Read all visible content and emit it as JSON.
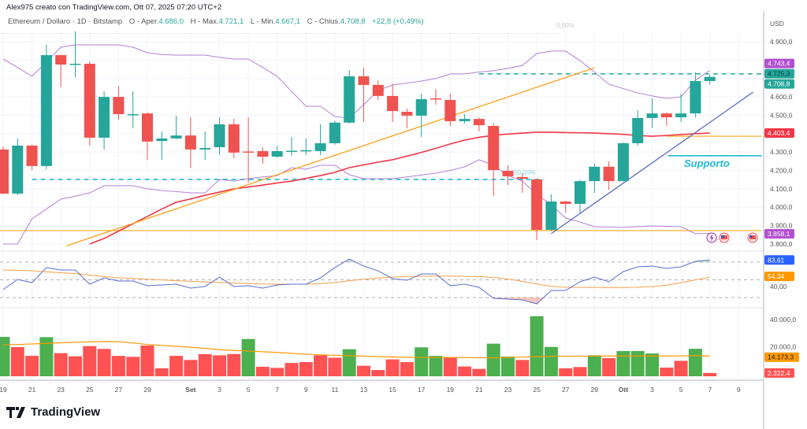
{
  "header": {
    "attribution": "Alex975 creato con TradingView.com, Ott 07, 2025 07:20 UTC+2",
    "symbol": "Ethereum / Dollaro · 1D · Bitstamp",
    "o_label": "O - Aper.",
    "o_val": "4.686,0",
    "h_label": "H - Max.",
    "h_val": "4.721,1",
    "l_label": "L - Min.",
    "l_val": "4.667,1",
    "c_label": "C - Chius.",
    "c_val": "4.708,8",
    "change": "+22,8 (+0,49%)"
  },
  "logo": {
    "text": "TradingView"
  },
  "colors": {
    "up": "#26a69a",
    "down": "#ef5350",
    "vol_up": "#4caf50",
    "vol_down": "#ff5252",
    "bollinger": "#b47fd6",
    "ma": "#f23645",
    "trend_orange": "#ff9f1a",
    "level_yellow": "#f7c35f",
    "support_cyan": "#22b8cf",
    "trend_blue": "#5c6bc0",
    "rsi": "#5b6fd1",
    "rsi_ma": "#f5a04a"
  },
  "chart_data": {
    "type": "candlestick",
    "price_axis": {
      "unit": "USD",
      "range": [
        3780,
        4960
      ],
      "ticks": [
        {
          "v": 4900,
          "t": "4.900,0"
        },
        {
          "v": 4600,
          "t": "4.600,0"
        },
        {
          "v": 4500,
          "t": "4.500,0"
        },
        {
          "v": 4300,
          "t": "4.300,0"
        },
        {
          "v": 4200,
          "t": "4.200,0"
        },
        {
          "v": 4100,
          "t": "4.100,0"
        },
        {
          "v": 4000,
          "t": "4.000,0"
        },
        {
          "v": 3900,
          "t": "3.900,0"
        },
        {
          "v": 3800,
          "t": "3.800,0"
        }
      ]
    },
    "x_labels": [
      {
        "i": 0,
        "t": "19"
      },
      {
        "i": 2,
        "t": "21"
      },
      {
        "i": 4,
        "t": "23"
      },
      {
        "i": 6,
        "t": "25"
      },
      {
        "i": 8,
        "t": "27"
      },
      {
        "i": 10,
        "t": "29"
      },
      {
        "i": 13,
        "t": "Set"
      },
      {
        "i": 15,
        "t": "3"
      },
      {
        "i": 17,
        "t": "5"
      },
      {
        "i": 19,
        "t": "7"
      },
      {
        "i": 21,
        "t": "9"
      },
      {
        "i": 23,
        "t": "11"
      },
      {
        "i": 25,
        "t": "13"
      },
      {
        "i": 27,
        "t": "15"
      },
      {
        "i": 29,
        "t": "17"
      },
      {
        "i": 31,
        "t": "19"
      },
      {
        "i": 33,
        "t": "21"
      },
      {
        "i": 35,
        "t": "23"
      },
      {
        "i": 37,
        "t": "25"
      },
      {
        "i": 39,
        "t": "27"
      },
      {
        "i": 41,
        "t": "29"
      },
      {
        "i": 43,
        "t": "Ott"
      },
      {
        "i": 45,
        "t": "3"
      },
      {
        "i": 47,
        "t": "5"
      },
      {
        "i": 49,
        "t": "7"
      },
      {
        "i": 51,
        "t": "9"
      }
    ],
    "ohlc": [
      [
        4314,
        4330,
        4070,
        4074
      ],
      [
        4074,
        4374,
        4066,
        4335
      ],
      [
        4335,
        4340,
        4202,
        4224
      ],
      [
        4224,
        4883,
        4207,
        4827
      ],
      [
        4827,
        4830,
        4652,
        4776
      ],
      [
        4776,
        4956,
        4707,
        4780
      ],
      [
        4780,
        4793,
        4335,
        4378
      ],
      [
        4378,
        4630,
        4314,
        4600
      ],
      [
        4600,
        4660,
        4476,
        4506
      ],
      [
        4500,
        4630,
        4430,
        4506
      ],
      [
        4510,
        4515,
        4258,
        4357
      ],
      [
        4360,
        4412,
        4258,
        4374
      ],
      [
        4374,
        4498,
        4370,
        4390
      ],
      [
        4390,
        4489,
        4215,
        4314
      ],
      [
        4314,
        4412,
        4258,
        4322
      ],
      [
        4326,
        4489,
        4284,
        4451
      ],
      [
        4451,
        4480,
        4267,
        4297
      ],
      [
        4303,
        4489,
        4134,
        4301
      ],
      [
        4305,
        4326,
        4237,
        4275
      ],
      [
        4275,
        4335,
        4270,
        4305
      ],
      [
        4305,
        4382,
        4280,
        4307
      ],
      [
        4305,
        4374,
        4284,
        4310
      ],
      [
        4305,
        4451,
        4284,
        4348
      ],
      [
        4348,
        4470,
        4340,
        4460
      ],
      [
        4460,
        4746,
        4455,
        4712
      ],
      [
        4712,
        4760,
        4464,
        4665
      ],
      [
        4665,
        4690,
        4583,
        4605
      ],
      [
        4605,
        4670,
        4464,
        4523
      ],
      [
        4519,
        4536,
        4430,
        4498
      ],
      [
        4498,
        4617,
        4382,
        4588
      ],
      [
        4592,
        4643,
        4558,
        4586
      ],
      [
        4583,
        4617,
        4442,
        4468
      ],
      [
        4468,
        4506,
        4455,
        4480
      ],
      [
        4480,
        4489,
        4412,
        4446
      ],
      [
        4442,
        4455,
        4061,
        4202
      ],
      [
        4198,
        4228,
        4121,
        4168
      ],
      [
        4164,
        4185,
        4078,
        4155
      ],
      [
        4151,
        4155,
        3822,
        3877
      ],
      [
        3877,
        4070,
        3870,
        4031
      ],
      [
        4031,
        4035,
        3971,
        4018
      ],
      [
        4018,
        4150,
        3967,
        4142
      ],
      [
        4142,
        4237,
        4078,
        4220
      ],
      [
        4220,
        4250,
        4095,
        4142
      ],
      [
        4142,
        4352,
        4140,
        4348
      ],
      [
        4348,
        4528,
        4335,
        4485
      ],
      [
        4485,
        4592,
        4430,
        4510
      ],
      [
        4510,
        4515,
        4442,
        4489
      ],
      [
        4489,
        4617,
        4464,
        4510
      ],
      [
        4510,
        4733,
        4489,
        4686
      ],
      [
        4686,
        4721.1,
        4667.1,
        4708.8
      ]
    ],
    "bollinger_upper": [
      4806,
      4760,
      4712,
      4790,
      4870,
      4883,
      4883,
      4883,
      4883,
      4870,
      4840,
      4830,
      4827,
      4827,
      4827,
      4815,
      4806,
      4806,
      4760,
      4712,
      4630,
      4549,
      4549,
      4493,
      4485,
      4558,
      4635,
      4665,
      4675,
      4686,
      4700,
      4725,
      4725,
      4735,
      4742,
      4755,
      4771,
      4836,
      4849,
      4849,
      4797,
      4735,
      4669,
      4645,
      4622,
      4605,
      4592,
      4600,
      4690,
      4743.4
    ],
    "bollinger_lower": [
      3800,
      3800,
      3937,
      3990,
      4044,
      4060,
      4078,
      4117,
      4117,
      4117,
      4100,
      4091,
      4085,
      4078,
      4078,
      4151,
      4142,
      4155,
      4165,
      4172,
      4215,
      4207,
      4228,
      4228,
      4177,
      4155,
      4155,
      4155,
      4165,
      4175,
      4185,
      4200,
      4220,
      4258,
      4228,
      4172,
      4142,
      4070,
      4014,
      3941,
      3920,
      3894,
      3892,
      3890,
      3894,
      3898,
      3896,
      3894,
      3856,
      3858.1
    ],
    "moving_average": [
      null,
      null,
      null,
      null,
      null,
      null,
      3800,
      3830,
      3870,
      3910,
      3950,
      3990,
      4027,
      4045,
      4065,
      4082,
      4100,
      4110,
      4120,
      4132,
      4142,
      4157,
      4172,
      4190,
      4215,
      4230,
      4245,
      4258,
      4278,
      4298,
      4320,
      4344,
      4365,
      4380,
      4391,
      4398,
      4403,
      4408,
      4408,
      4406,
      4405,
      4403,
      4400,
      4396,
      4390,
      4386,
      4390,
      4395,
      4400,
      4403.4
    ],
    "trendlines": [
      {
        "color_key": "trend_orange",
        "from": {
          "i": 4.4,
          "p": 3790
        },
        "to": {
          "i": 41,
          "p": 4758
        }
      },
      {
        "color_key": "trend_blue",
        "from": {
          "i": 38,
          "p": 3856
        },
        "to": {
          "i": 52,
          "p": 4626
        }
      }
    ],
    "horizontal_levels": [
      {
        "p": 3873,
        "from_i": -1,
        "to_i": 52.6,
        "color_key": "level_yellow",
        "style": "solid"
      },
      {
        "p": 4386,
        "from_i": 46,
        "to_i": 52.6,
        "color_key": "level_yellow",
        "style": "solid"
      },
      {
        "p": 4151,
        "from_i": 2,
        "to_i": 37.5,
        "color_key": "support_cyan",
        "style": "dashed"
      },
      {
        "p": 4725,
        "from_i": 33,
        "to_i": 52.6,
        "color_key": "up",
        "style": "dashed"
      },
      {
        "p": 4280,
        "from_i": 46.1,
        "to_i": 52.6,
        "color_key": "support_cyan",
        "style": "solid"
      },
      {
        "p": 4950,
        "from_i": -1,
        "to_i": 38.5,
        "color_key": "grey",
        "style": "solid"
      }
    ],
    "annotations": {
      "support_label": "Supporto",
      "fib_0": "0,00%",
      "fib_50": "50,00%"
    },
    "price_badges": [
      {
        "t": "4.743,4",
        "p": 4743.4,
        "bg": "#b34fd1",
        "fg": "#ffffff"
      },
      {
        "t": "4.725,3",
        "p": 4725.3,
        "bg": "#26a69a",
        "fg": "#0b3b36"
      },
      {
        "t": "4.708,8",
        "p": 4708.8,
        "bg": "#26a69a",
        "fg": "#ffffff"
      },
      {
        "t": "4.403,4",
        "p": 4403.4,
        "bg": "#f23645",
        "fg": "#ffffff"
      },
      {
        "t": "3.858,1",
        "p": 3858.1,
        "bg": "#b34fd1",
        "fg": "#ffffff"
      }
    ],
    "rsi": {
      "bands": [
        80,
        50,
        20
      ],
      "tick": {
        "v": 40,
        "t": "40,00"
      },
      "values": [
        33.3,
        50.7,
        45.3,
        70.7,
        66.7,
        66.7,
        42.7,
        53.3,
        48,
        48,
        40,
        41.3,
        42.7,
        36,
        38.7,
        54.7,
        38.7,
        40,
        36,
        41.3,
        42.7,
        42.7,
        53.3,
        70.7,
        85.3,
        73.3,
        65.3,
        52,
        49.3,
        60,
        60,
        40,
        42.7,
        37.3,
        18.7,
        17.3,
        16,
        9.3,
        32,
        32,
        46.7,
        54.7,
        46.7,
        64,
        72,
        73.3,
        69.3,
        72,
        81.3,
        83.61
      ],
      "ma": [
        66.7,
        66.2,
        65.3,
        63.5,
        62,
        60.5,
        58,
        55.5,
        53.5,
        52.5,
        51,
        49.8,
        48.5,
        47.5,
        46.5,
        45.5,
        44.5,
        43.8,
        43,
        42.7,
        42.7,
        42.7,
        43.5,
        45.5,
        48.5,
        51,
        53,
        54.5,
        55.5,
        56,
        56.3,
        56.3,
        56,
        55.5,
        54,
        51.5,
        47.5,
        43,
        39,
        37.5,
        37.2,
        37.1,
        37,
        37,
        37.3,
        38.5,
        41,
        45,
        50,
        54.34
      ],
      "badges": [
        {
          "t": "83,61",
          "v": 83.61,
          "bg": "#2962ff"
        },
        {
          "t": "54,34",
          "v": 54.34,
          "bg": "#ff9800"
        }
      ]
    },
    "volume": {
      "ticks": [
        {
          "v": 40000,
          "t": "40.000,0"
        },
        {
          "v": 20000,
          "t": "20.000,0"
        }
      ],
      "values": [
        27800,
        20600,
        14400,
        27600,
        16300,
        14100,
        21300,
        19300,
        14400,
        13700,
        21700,
        5600,
        14400,
        11500,
        15600,
        14800,
        15700,
        26300,
        6700,
        5900,
        9400,
        10000,
        14800,
        13100,
        19100,
        7400,
        4400,
        11900,
        10000,
        20400,
        14400,
        13000,
        6900,
        5200,
        23000,
        13900,
        11500,
        42400,
        20700,
        5600,
        6500,
        14800,
        12800,
        17800,
        17800,
        16100,
        6100,
        10900,
        19400,
        2322.4
      ],
      "up": [
        1,
        0,
        0,
        1,
        0,
        0,
        0,
        0,
        0,
        0,
        0,
        0,
        0,
        0,
        0,
        0,
        0,
        1,
        0,
        0,
        0,
        0,
        0,
        0,
        1,
        0,
        0,
        0,
        0,
        1,
        1,
        0,
        0,
        0,
        1,
        1,
        0,
        1,
        1,
        0,
        0,
        1,
        0,
        1,
        1,
        1,
        0,
        0,
        1,
        0
      ],
      "ma": [
        22200,
        22400,
        22800,
        23200,
        23600,
        24000,
        24300,
        24500,
        24400,
        23500,
        22400,
        21800,
        21200,
        20500,
        19700,
        18800,
        18200,
        17800,
        17300,
        16800,
        16200,
        15600,
        15100,
        14800,
        14500,
        14200,
        13900,
        13600,
        13400,
        13300,
        13300,
        13300,
        13200,
        13100,
        13000,
        13200,
        13500,
        13800,
        14100,
        14200,
        14200,
        14200,
        14300,
        14300,
        14300,
        14300,
        14300,
        14400,
        14600,
        14173.3
      ],
      "badges": [
        {
          "t": "14.173,3",
          "v": 14173.3,
          "bg": "#ff9800",
          "fg": "#131722"
        },
        {
          "t": "2.322,4",
          "v": 2322.4,
          "bg": "#ff5252",
          "fg": "#ffffff"
        }
      ]
    },
    "icons": [
      "lightning-event-icon",
      "us-flag-event-icon",
      "us-flag-event-icon"
    ]
  }
}
